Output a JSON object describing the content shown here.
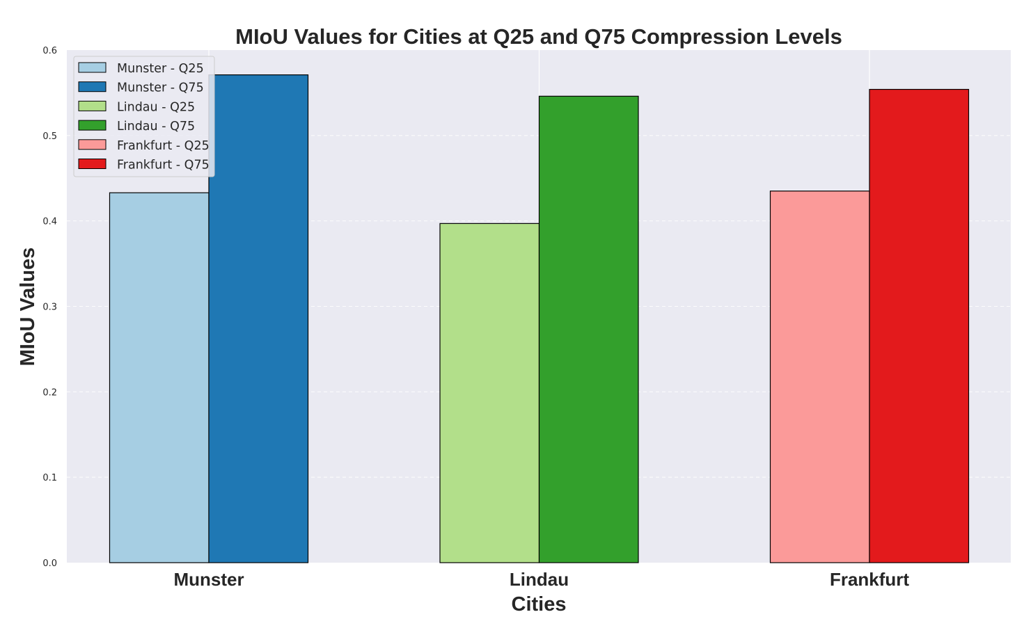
{
  "chart_data": {
    "type": "bar",
    "title": "MIoU Values for Cities at Q25 and Q75 Compression Levels",
    "xlabel": "Cities",
    "ylabel": "MIoU Values",
    "categories": [
      "Munster",
      "Lindau",
      "Frankfurt"
    ],
    "ylim": [
      0,
      0.6
    ],
    "yticks": [
      0.0,
      0.1,
      0.2,
      0.3,
      0.4,
      0.5,
      0.6
    ],
    "ytick_labels": [
      "0.0",
      "0.1",
      "0.2",
      "0.3",
      "0.4",
      "0.5",
      "0.6"
    ],
    "grid": true,
    "legend_position": "top-left",
    "series": [
      {
        "name": "Munster - Q25",
        "category": "Munster",
        "level": "Q25",
        "value": 0.433,
        "color": "#a6cee3"
      },
      {
        "name": "Munster - Q75",
        "category": "Munster",
        "level": "Q75",
        "value": 0.571,
        "color": "#1f78b4"
      },
      {
        "name": "Lindau - Q25",
        "category": "Lindau",
        "level": "Q25",
        "value": 0.397,
        "color": "#b2df8a"
      },
      {
        "name": "Lindau - Q75",
        "category": "Lindau",
        "level": "Q75",
        "value": 0.546,
        "color": "#33a02c"
      },
      {
        "name": "Frankfurt - Q25",
        "category": "Frankfurt",
        "level": "Q25",
        "value": 0.435,
        "color": "#fb9a99"
      },
      {
        "name": "Frankfurt - Q75",
        "category": "Frankfurt",
        "level": "Q75",
        "value": 0.554,
        "color": "#e31a1c"
      }
    ],
    "plot_background": "#eaeaf2"
  }
}
